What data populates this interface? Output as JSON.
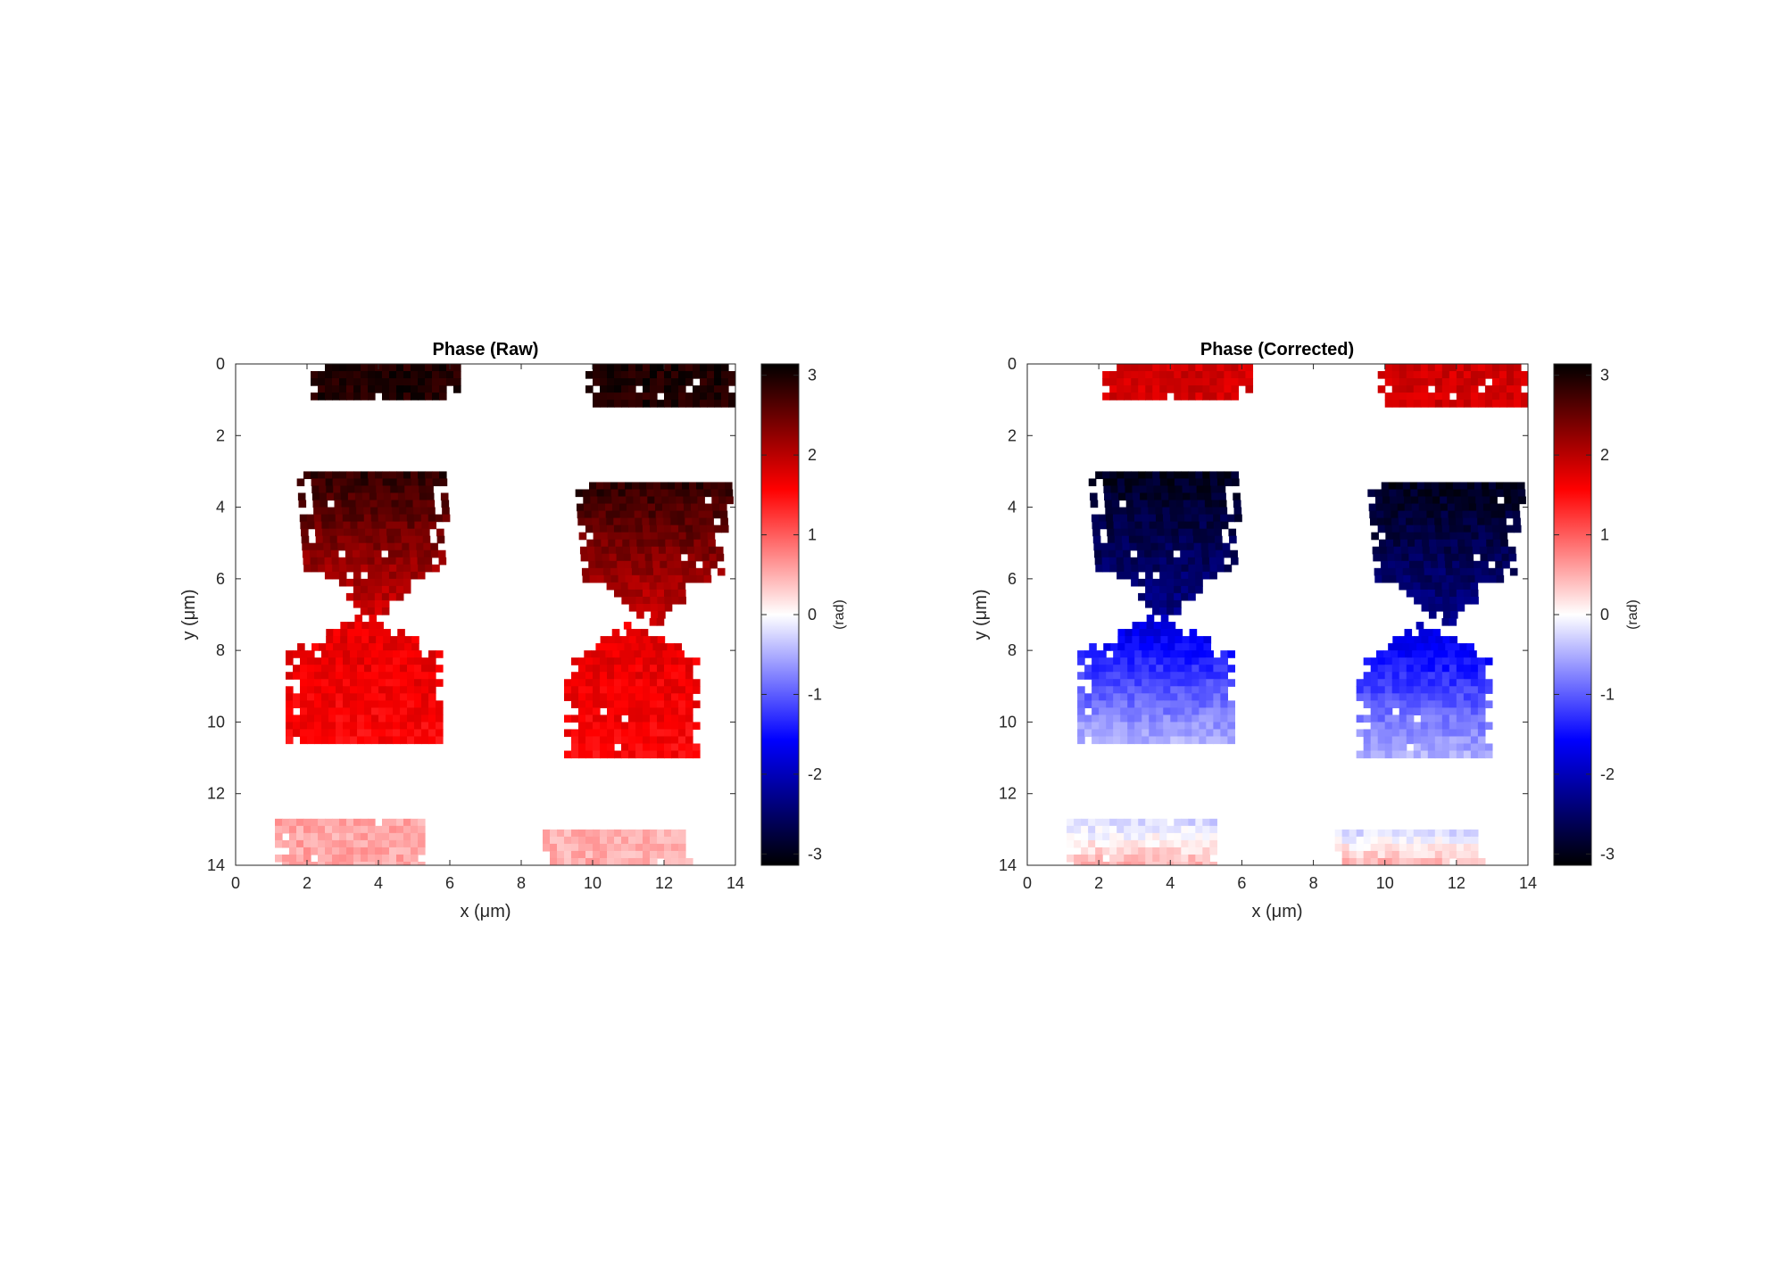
{
  "chart_data": [
    {
      "type": "heatmap",
      "title": "Phase (Raw)",
      "xlabel": "x (μm)",
      "ylabel": "y (μm)",
      "xlim": [
        0,
        14
      ],
      "ylim": [
        14,
        0
      ],
      "xticks": [
        "0",
        "2",
        "4",
        "6",
        "8",
        "10",
        "12",
        "14"
      ],
      "yticks": [
        "0",
        "2",
        "4",
        "6",
        "8",
        "10",
        "12",
        "14"
      ],
      "colorbar": {
        "label": "(rad)",
        "range": [
          -3.14159,
          3.14159
        ],
        "ticks": [
          "3",
          "2",
          "1",
          "0",
          "-1",
          "-2",
          "-3"
        ],
        "colormap": [
          "#000000",
          "#ff0000",
          "#ffffff",
          "#0000ff",
          "#000000"
        ]
      },
      "regions": [
        {
          "name": "top-left",
          "x": [
            2.1,
            6.2
          ],
          "y": [
            0.0,
            0.9
          ],
          "phase": 2.95
        },
        {
          "name": "top-right",
          "x": [
            9.8,
            14.0
          ],
          "y": [
            0.0,
            1.1
          ],
          "phase": 2.95
        },
        {
          "name": "upper-left",
          "x": [
            1.7,
            5.9
          ],
          "y": [
            3.0,
            7.0
          ],
          "phase_top": 2.85,
          "phase_bottom": 1.85
        },
        {
          "name": "upper-right",
          "x": [
            9.5,
            13.8
          ],
          "y": [
            3.3,
            7.2
          ],
          "phase_top": 2.85,
          "phase_bottom": 1.85
        },
        {
          "name": "lower-left",
          "x": [
            1.4,
            5.8
          ],
          "y": [
            7.0,
            10.5
          ],
          "phase_top": 1.75,
          "phase_bottom": 1.55
        },
        {
          "name": "lower-right",
          "x": [
            9.2,
            13.0
          ],
          "y": [
            7.2,
            10.9
          ],
          "phase_top": 1.75,
          "phase_bottom": 1.55
        },
        {
          "name": "bottom-left",
          "x": [
            1.1,
            5.3
          ],
          "y": [
            12.7,
            14.0
          ],
          "phase": 0.55
        },
        {
          "name": "bottom-right",
          "x": [
            8.6,
            12.8
          ],
          "y": [
            13.0,
            14.0
          ],
          "phase": 0.5
        }
      ]
    },
    {
      "type": "heatmap",
      "title": "Phase (Corrected)",
      "xlabel": "x (μm)",
      "ylabel": "y (μm)",
      "xlim": [
        0,
        14
      ],
      "ylim": [
        14,
        0
      ],
      "xticks": [
        "0",
        "2",
        "4",
        "6",
        "8",
        "10",
        "12",
        "14"
      ],
      "yticks": [
        "0",
        "2",
        "4",
        "6",
        "8",
        "10",
        "12",
        "14"
      ],
      "colorbar": {
        "label": "(rad)",
        "range": [
          -3.14159,
          3.14159
        ],
        "ticks": [
          "3",
          "2",
          "1",
          "0",
          "-1",
          "-2",
          "-3"
        ],
        "colormap": [
          "#000000",
          "#ff0000",
          "#ffffff",
          "#0000ff",
          "#000000"
        ]
      },
      "regions": [
        {
          "name": "top-left",
          "x": [
            2.1,
            6.2
          ],
          "y": [
            0.0,
            0.9
          ],
          "phase": 1.85
        },
        {
          "name": "top-right",
          "x": [
            9.8,
            14.0
          ],
          "y": [
            0.0,
            1.1
          ],
          "phase": 1.85
        },
        {
          "name": "upper-left",
          "x": [
            1.7,
            5.9
          ],
          "y": [
            3.0,
            7.0
          ],
          "phase_top": -2.95,
          "phase_bottom": -2.3
        },
        {
          "name": "upper-right",
          "x": [
            9.5,
            13.8
          ],
          "y": [
            3.3,
            7.2
          ],
          "phase_top": -2.95,
          "phase_bottom": -2.3
        },
        {
          "name": "lower-left",
          "x": [
            1.4,
            5.8
          ],
          "y": [
            7.0,
            10.5
          ],
          "phase_top": -1.85,
          "phase_bottom": -0.45
        },
        {
          "name": "lower-right",
          "x": [
            9.2,
            13.0
          ],
          "y": [
            7.2,
            10.9
          ],
          "phase_top": -1.85,
          "phase_bottom": -0.45
        },
        {
          "name": "bottom-left",
          "x": [
            1.1,
            5.3
          ],
          "y": [
            12.7,
            14.0
          ],
          "phase_top": -0.25,
          "phase_bottom": 0.55
        },
        {
          "name": "bottom-right",
          "x": [
            8.6,
            12.8
          ],
          "y": [
            13.0,
            14.0
          ],
          "phase_top": -0.2,
          "phase_bottom": 0.6
        }
      ]
    }
  ]
}
